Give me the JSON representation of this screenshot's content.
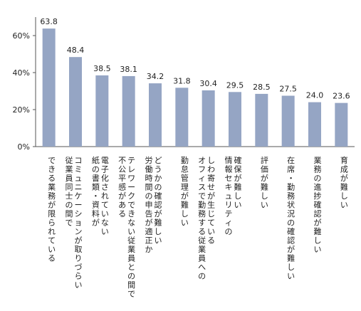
{
  "chart_data": {
    "type": "bar",
    "title": "",
    "xlabel": "",
    "ylabel": "",
    "ylim": [
      0,
      70
    ],
    "yticks": [
      0,
      20,
      40,
      60
    ],
    "ytick_labels": [
      "0%",
      "20%",
      "40%",
      "60%"
    ],
    "grid": false,
    "bar_color": "#95a5c4",
    "categories": [
      [
        "できる業務が限られている"
      ],
      [
        "コミュニケーションが取りづらい",
        "従業員同士の間で"
      ],
      [
        "電子化されていない",
        "紙の書類・資料が"
      ],
      [
        "テレワークできない従業員との間で",
        "不公平感がある"
      ],
      [
        "どうかの確認が難しい",
        "労働時間の申告が適正か"
      ],
      [
        "勤怠管理が難しい"
      ],
      [
        "しわ寄せが生じている",
        "オフィスで勤務する従業員への"
      ],
      [
        "確保が難しい",
        "情報セキュリティの"
      ],
      [
        "評価が難しい"
      ],
      [
        "在席・勤務状況の確認が難しい"
      ],
      [
        "業務の進捗確認が難しい"
      ],
      [
        "育成が難しい"
      ]
    ],
    "values": [
      63.8,
      48.4,
      38.5,
      38.1,
      34.2,
      31.8,
      30.4,
      29.5,
      28.5,
      27.5,
      24.0,
      23.6
    ],
    "value_labels": [
      "63.8",
      "48.4",
      "38.5",
      "38.1",
      "34.2",
      "31.8",
      "30.4",
      "29.5",
      "28.5",
      "27.5",
      "24.0",
      "23.6"
    ]
  }
}
